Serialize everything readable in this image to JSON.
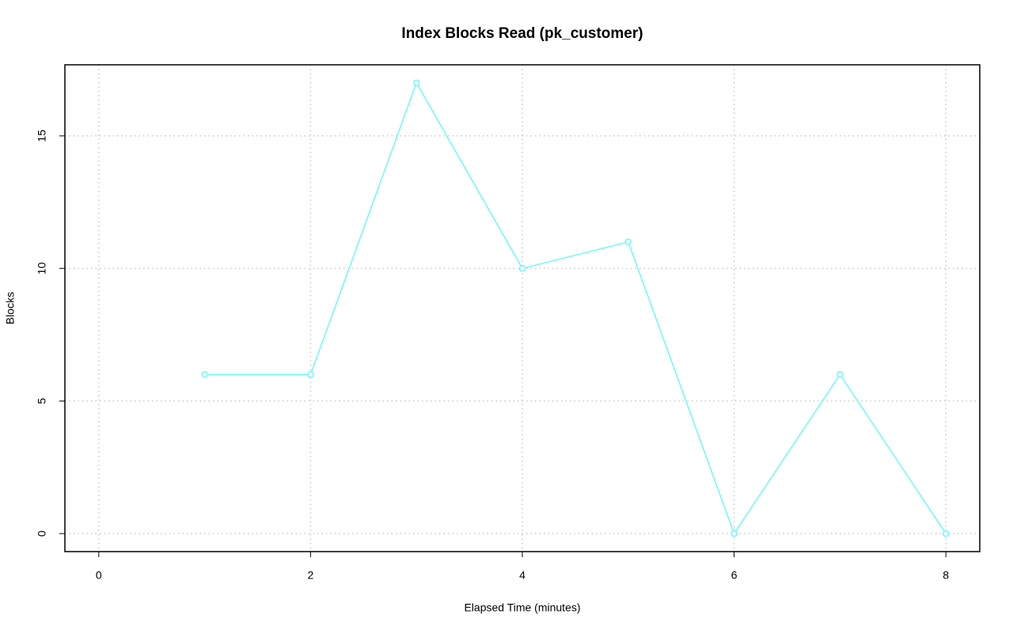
{
  "chart_data": {
    "type": "line",
    "title": "Index Blocks Read (pk_customer)",
    "x_label": "Elapsed Time (minutes)",
    "y_label": "Blocks",
    "x": [
      1,
      2,
      3,
      4,
      5,
      6,
      7,
      8
    ],
    "series": [
      {
        "color": "#70f8f8",
        "values": [
          6,
          6,
          17,
          10,
          11,
          0,
          6,
          0
        ]
      }
    ],
    "xlim": [
      -0.32,
      8.32
    ],
    "ylim": [
      -0.68,
      17.68
    ],
    "xticks": [
      0,
      2,
      4,
      6,
      8
    ],
    "yticks": [
      0,
      5,
      10,
      15
    ],
    "grid": true
  }
}
